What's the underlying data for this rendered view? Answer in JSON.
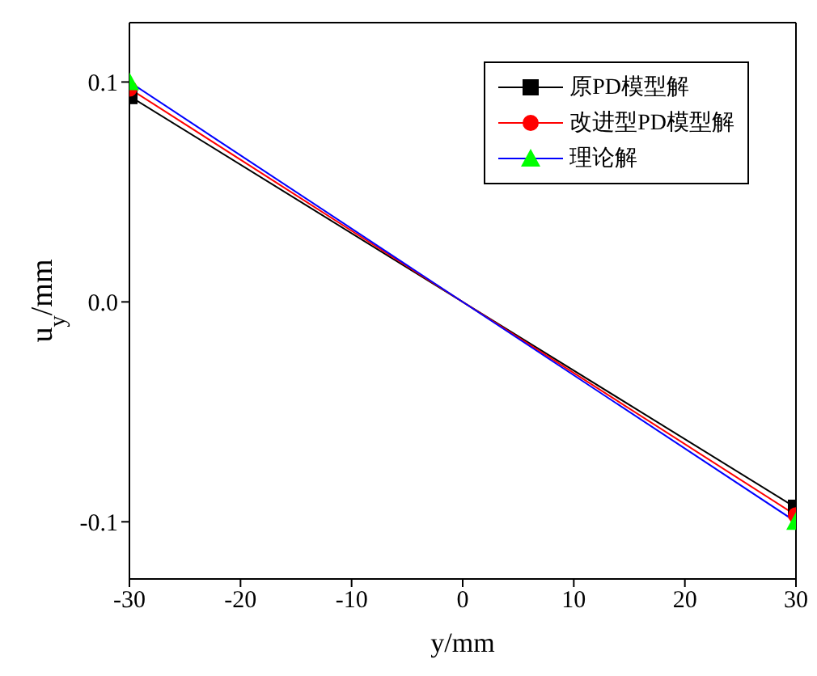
{
  "chart_data": {
    "type": "line",
    "xlabel": "y/mm",
    "ylabel": "u$_{y}$/mm",
    "x": [
      -30,
      30
    ],
    "series": [
      {
        "name": "原PD模型解",
        "color": "#000000",
        "marker": "square",
        "values": [
          0.0936,
          -0.0936
        ]
      },
      {
        "name": "改进型PD模型解",
        "color": "#ff0000",
        "marker": "circle",
        "values": [
          0.097,
          -0.097
        ]
      },
      {
        "name": "理论解",
        "color": "#0000ff",
        "colors": [
          "#00ff00",
          "#00ff00"
        ],
        "marker": "triangle",
        "values": [
          0.1,
          -0.1
        ]
      }
    ],
    "xlim": [
      -30,
      30
    ],
    "xticks": [
      -30,
      -20,
      -10,
      0,
      10,
      20,
      30
    ],
    "ylim": [
      -0.126,
      0.127
    ],
    "yticks": [
      {
        "value": -0.1,
        "label": "-0.1"
      },
      {
        "value": 0,
        "label": "0.0"
      },
      {
        "value": 0.1,
        "label": "0.1"
      }
    ],
    "legend": "top right",
    "line_style": "solid"
  }
}
